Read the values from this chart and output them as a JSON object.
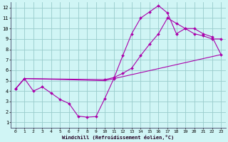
{
  "bg_color": "#d0f5f5",
  "grid_color": "#99cccc",
  "line_color": "#aa00aa",
  "xlim": [
    -0.5,
    23.5
  ],
  "ylim": [
    0.5,
    12.5
  ],
  "xticks": [
    0,
    1,
    2,
    3,
    4,
    5,
    6,
    7,
    8,
    9,
    10,
    11,
    12,
    13,
    14,
    15,
    16,
    17,
    18,
    19,
    20,
    21,
    22,
    23
  ],
  "yticks": [
    1,
    2,
    3,
    4,
    5,
    6,
    7,
    8,
    9,
    10,
    11,
    12
  ],
  "xlabel": "Windchill (Refroidissement éolien,°C)",
  "line1_x": [
    0,
    1,
    2,
    3,
    4,
    5,
    6,
    7,
    8,
    9,
    10,
    11,
    12,
    13,
    14,
    15,
    16,
    17,
    18,
    19,
    20,
    21,
    22,
    23
  ],
  "line1_y": [
    4.2,
    5.2,
    4.0,
    4.4,
    3.8,
    3.2,
    2.8,
    1.6,
    1.5,
    1.55,
    3.3,
    5.2,
    7.4,
    9.5,
    11.0,
    11.6,
    12.2,
    11.5,
    9.5,
    10.0,
    9.5,
    9.3,
    9.0,
    9.0
  ],
  "line2_x": [
    0,
    1,
    10,
    11,
    12,
    13,
    14,
    15,
    16,
    17,
    18,
    19,
    20,
    21,
    22,
    23
  ],
  "line2_y": [
    4.2,
    5.2,
    5.1,
    5.3,
    5.7,
    6.2,
    7.4,
    8.5,
    9.5,
    11.0,
    10.5,
    10.0,
    10.0,
    9.5,
    9.2,
    7.5
  ],
  "line3_x": [
    0,
    1,
    10,
    23
  ],
  "line3_y": [
    4.2,
    5.2,
    5.0,
    7.5
  ]
}
